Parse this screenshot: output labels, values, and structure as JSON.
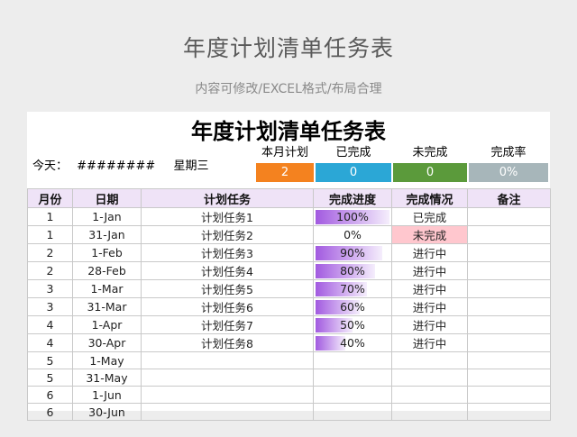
{
  "banner": {
    "title": "年度计划清单任务表",
    "subtitle": "内容可修改/EXCEL格式/布局合理"
  },
  "sheet": {
    "title": "年度计划清单任务表",
    "today_label": "今天：",
    "today_value": "########",
    "weekday": "星期三"
  },
  "stats": [
    {
      "label": "本月计划",
      "value": "2",
      "color": "#f4821f"
    },
    {
      "label": "已完成",
      "value": "0",
      "color": "#2ba7d6"
    },
    {
      "label": "未完成",
      "value": "0",
      "color": "#5b9a3b"
    },
    {
      "label": "完成率",
      "value": "0%",
      "color": "#a7b6ba"
    }
  ],
  "table": {
    "headers": [
      "月份",
      "日期",
      "计划任务",
      "完成进度",
      "完成情况",
      "备注"
    ],
    "rows": [
      {
        "month": "1",
        "date": "1-Jan",
        "task": "计划任务1",
        "progress": "100%",
        "progress_value": 1.0,
        "status": "已完成",
        "late": false,
        "note": ""
      },
      {
        "month": "1",
        "date": "31-Jan",
        "task": "计划任务2",
        "progress": "0%",
        "progress_value": 0.0,
        "status": "未完成",
        "late": true,
        "note": ""
      },
      {
        "month": "2",
        "date": "1-Feb",
        "task": "计划任务3",
        "progress": "90%",
        "progress_value": 0.9,
        "status": "进行中",
        "late": false,
        "note": ""
      },
      {
        "month": "2",
        "date": "28-Feb",
        "task": "计划任务4",
        "progress": "80%",
        "progress_value": 0.8,
        "status": "进行中",
        "late": false,
        "note": ""
      },
      {
        "month": "3",
        "date": "1-Mar",
        "task": "计划任务5",
        "progress": "70%",
        "progress_value": 0.7,
        "status": "进行中",
        "late": false,
        "note": ""
      },
      {
        "month": "3",
        "date": "31-Mar",
        "task": "计划任务6",
        "progress": "60%",
        "progress_value": 0.6,
        "status": "进行中",
        "late": false,
        "note": ""
      },
      {
        "month": "4",
        "date": "1-Apr",
        "task": "计划任务7",
        "progress": "50%",
        "progress_value": 0.5,
        "status": "进行中",
        "late": false,
        "note": ""
      },
      {
        "month": "4",
        "date": "30-Apr",
        "task": "计划任务8",
        "progress": "40%",
        "progress_value": 0.4,
        "status": "进行中",
        "late": false,
        "note": ""
      },
      {
        "month": "5",
        "date": "1-May",
        "task": "",
        "progress": "",
        "progress_value": null,
        "status": "",
        "late": false,
        "note": ""
      },
      {
        "month": "5",
        "date": "31-May",
        "task": "",
        "progress": "",
        "progress_value": null,
        "status": "",
        "late": false,
        "note": ""
      },
      {
        "month": "6",
        "date": "1-Jun",
        "task": "",
        "progress": "",
        "progress_value": null,
        "status": "",
        "late": false,
        "note": ""
      },
      {
        "month": "6",
        "date": "30-Jun",
        "task": "",
        "progress": "",
        "progress_value": null,
        "status": "",
        "late": false,
        "note": ""
      }
    ]
  }
}
